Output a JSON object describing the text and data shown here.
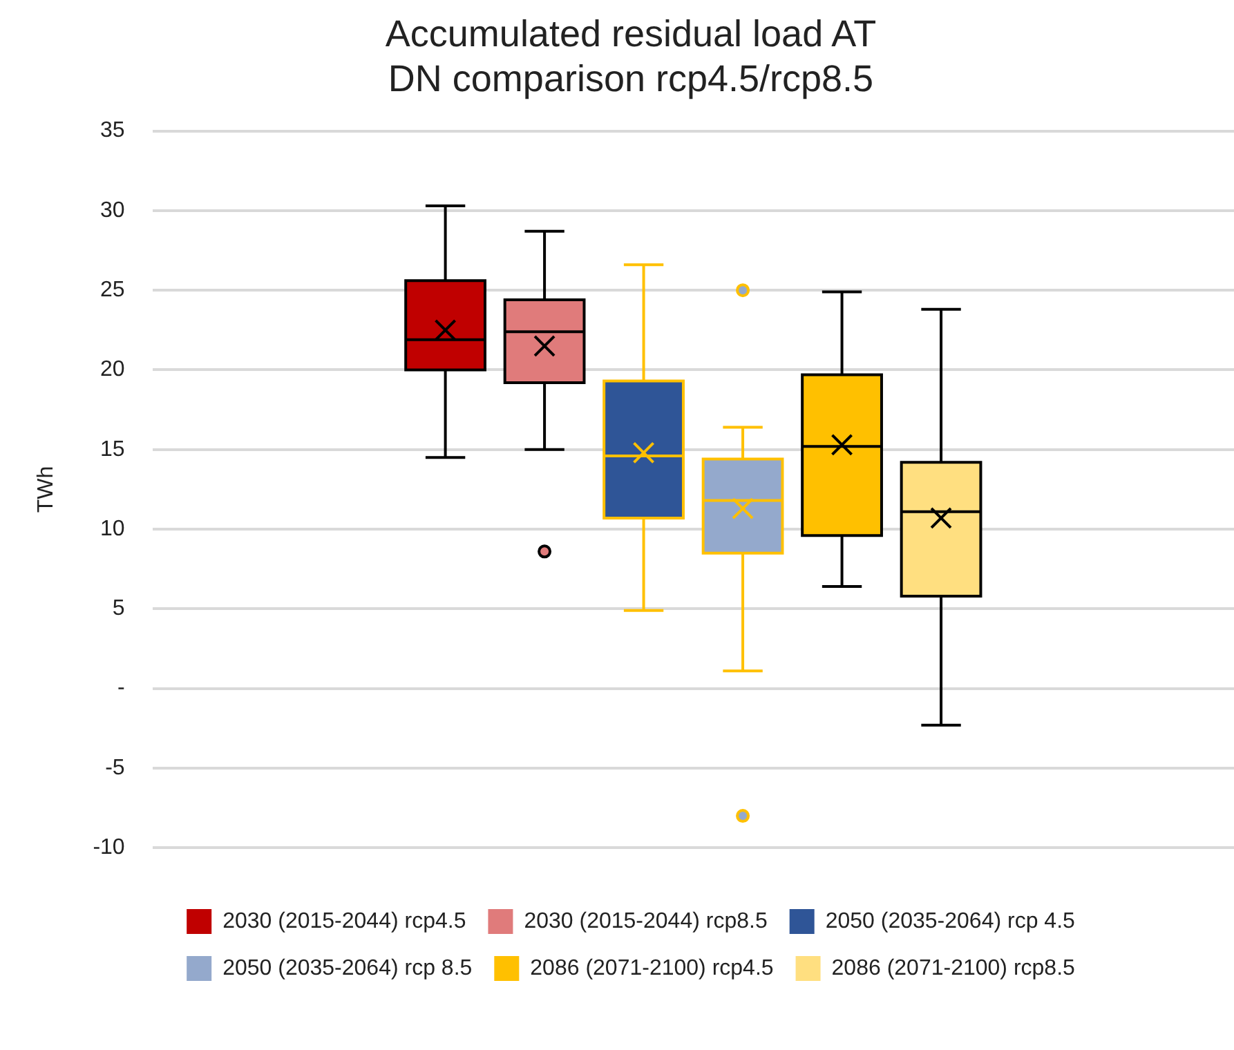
{
  "chart_data": {
    "type": "box",
    "title": "Accumulated residual load AT\nDN comparison rcp4.5/rcp8.5",
    "ylabel": "TWh",
    "categories": [
      null
    ],
    "ylim": [
      -10,
      35
    ],
    "yticks": [
      -10,
      -5,
      {
        "value": 0,
        "label": "-"
      },
      5,
      10,
      15,
      20,
      25,
      30,
      35
    ],
    "grid": "y",
    "legend": "bottom",
    "series": [
      {
        "name": "2030 (2015-2044) rcp4.5",
        "color": "#c00000",
        "boxes": [
          {
            "low": 14.5,
            "q1": 20.0,
            "median": 21.9,
            "q3": 25.6,
            "high": 30.3,
            "mean": 22.5
          }
        ]
      },
      {
        "name": "2030 (2015-2044) rcp8.5",
        "color": "#e07b7b",
        "boxes": [
          {
            "low": 15.0,
            "q1": 19.2,
            "median": 22.4,
            "q3": 24.4,
            "high": 28.7,
            "mean": 21.5,
            "outliers": [
              8.6
            ]
          }
        ]
      },
      {
        "name": "2050 (2035-2064) rcp 4.5",
        "color": "#2f5597",
        "boxes": [
          {
            "low": 4.9,
            "q1": 10.7,
            "median": 14.6,
            "q3": 19.3,
            "high": 26.6,
            "mean": 14.8
          }
        ]
      },
      {
        "name": "2050 (2035-2064) rcp 8.5",
        "color": "#94a9cc",
        "boxes": [
          {
            "low": 1.1,
            "q1": 8.5,
            "median": 11.8,
            "q3": 14.4,
            "high": 16.4,
            "mean": 11.3,
            "outliers": [
              25,
              -8
            ]
          }
        ]
      },
      {
        "name": "2086 (2071-2100) rcp4.5",
        "color": "#ffc000",
        "boxes": [
          {
            "low": 6.4,
            "q1": 9.6,
            "median": 15.2,
            "q3": 19.7,
            "high": 24.9,
            "mean": 15.3
          }
        ]
      },
      {
        "name": "2086 (2071-2100) rcp8.5",
        "color": "#ffdf80",
        "boxes": [
          {
            "low": -2.3,
            "q1": 5.8,
            "median": 11.1,
            "q3": 14.2,
            "high": 23.8,
            "mean": 10.7
          }
        ]
      }
    ]
  }
}
